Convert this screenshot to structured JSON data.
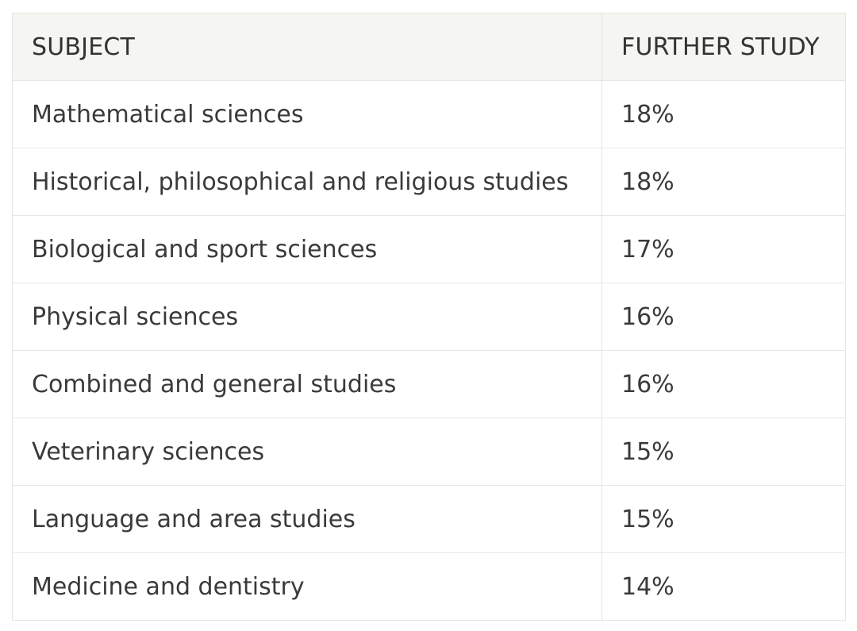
{
  "table": {
    "headers": {
      "subject": "SUBJECT",
      "further_study": "FURTHER STUDY"
    },
    "rows": [
      {
        "subject": "Mathematical sciences",
        "further_study": "18%"
      },
      {
        "subject": "Historical, philosophical and religious studies",
        "further_study": "18%"
      },
      {
        "subject": "Biological and sport sciences",
        "further_study": "17%"
      },
      {
        "subject": "Physical sciences",
        "further_study": "16%"
      },
      {
        "subject": "Combined and general studies",
        "further_study": "16%"
      },
      {
        "subject": "Veterinary sciences",
        "further_study": "15%"
      },
      {
        "subject": "Language and area studies",
        "further_study": "15%"
      },
      {
        "subject": "Medicine and dentistry",
        "further_study": "14%"
      }
    ]
  },
  "colors": {
    "header_background": "#f5f5f2",
    "border": "#e6e6e3",
    "text": "#333333"
  }
}
